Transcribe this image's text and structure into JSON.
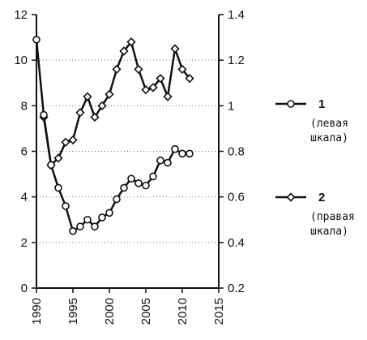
{
  "chart_data": {
    "type": "line",
    "title": "",
    "xlabel": "",
    "ylabel_left": "",
    "ylabel_right": "",
    "xlim": [
      1990,
      2015
    ],
    "xticks": [
      1990,
      1995,
      2000,
      2005,
      2010,
      2015
    ],
    "ylim_left": [
      0,
      12
    ],
    "yticks_left": [
      0,
      2,
      4,
      6,
      8,
      10,
      12
    ],
    "ylim_right": [
      0.2,
      1.4
    ],
    "yticks_right": [
      "0.2",
      "0.4",
      "0.6",
      "0.8",
      "1",
      "1.2",
      "1.4"
    ],
    "grid": "horizontal dotted",
    "series": [
      {
        "name": "1",
        "axis": "left",
        "marker": "circle",
        "legend_note": [
          "(левая",
          "шкала)"
        ],
        "x": [
          1990,
          1991,
          1992,
          1993,
          1994,
          1995,
          1996,
          1997,
          1998,
          1999,
          2000,
          2001,
          2002,
          2003,
          2004,
          2005,
          2006,
          2007,
          2008,
          2009,
          2010,
          2011
        ],
        "values": [
          10.9,
          7.6,
          5.4,
          4.4,
          3.6,
          2.5,
          2.7,
          3.0,
          2.7,
          3.1,
          3.3,
          3.9,
          4.4,
          4.8,
          4.6,
          4.5,
          4.9,
          5.6,
          5.5,
          6.1,
          5.9,
          5.9
        ]
      },
      {
        "name": "2",
        "axis": "right",
        "marker": "diamond",
        "legend_note": [
          "(правая",
          "шкала)"
        ],
        "x": [
          1991,
          1992,
          1993,
          1994,
          1995,
          1996,
          1997,
          1998,
          1999,
          2000,
          2001,
          2002,
          2003,
          2004,
          2005,
          2006,
          2007,
          2008,
          2009,
          2010,
          2011
        ],
        "values": [
          0.95,
          0.74,
          0.77,
          0.84,
          0.85,
          0.97,
          1.04,
          0.95,
          1.0,
          1.05,
          1.16,
          1.24,
          1.28,
          1.16,
          1.07,
          1.08,
          1.12,
          1.04,
          1.25,
          1.16,
          1.12
        ]
      }
    ]
  }
}
